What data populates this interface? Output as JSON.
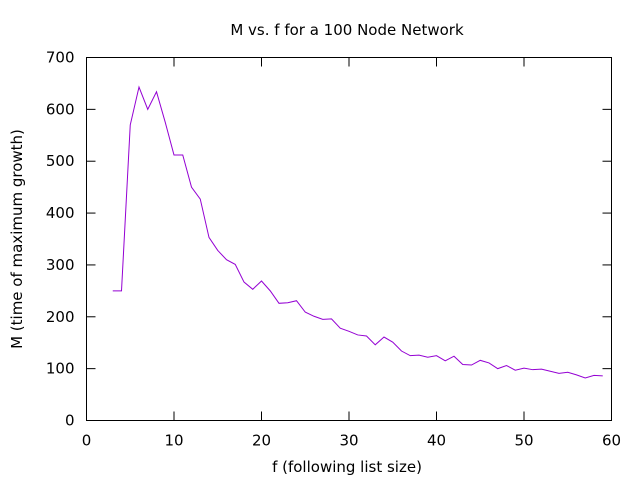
{
  "chart_data": {
    "type": "line",
    "title": "M vs. f for a 100 Node Network",
    "xlabel": "f (following list size)",
    "ylabel": "M (time of maximum growth)",
    "xlim": [
      0,
      60
    ],
    "ylim": [
      0,
      700
    ],
    "xticks": [
      0,
      10,
      20,
      30,
      40,
      50,
      60
    ],
    "yticks": [
      0,
      100,
      200,
      300,
      400,
      500,
      600,
      700
    ],
    "grid": false,
    "series": [
      {
        "color": "#9400d3",
        "x": [
          3,
          4,
          5,
          6,
          7,
          8,
          9,
          10,
          11,
          12,
          13,
          14,
          15,
          16,
          17,
          18,
          19,
          20,
          21,
          22,
          23,
          24,
          25,
          26,
          27,
          28,
          29,
          30,
          31,
          32,
          33,
          34,
          35,
          36,
          37,
          38,
          39,
          40,
          41,
          42,
          43,
          44,
          45,
          46,
          47,
          48,
          49,
          50,
          51,
          52,
          53,
          54,
          55,
          56,
          57,
          58,
          59
        ],
        "y": [
          250,
          250,
          570,
          643,
          600,
          634,
          575,
          512,
          512,
          450,
          427,
          353,
          328,
          310,
          301,
          267,
          253,
          269,
          250,
          226,
          227,
          231,
          209,
          201,
          195,
          196,
          178,
          172,
          165,
          163,
          146,
          161,
          151,
          134,
          125,
          126,
          122,
          125,
          115,
          124,
          108,
          107,
          116,
          111,
          100,
          106,
          97,
          101,
          98,
          99,
          95,
          91,
          93,
          88,
          82,
          87,
          86
        ]
      }
    ]
  }
}
